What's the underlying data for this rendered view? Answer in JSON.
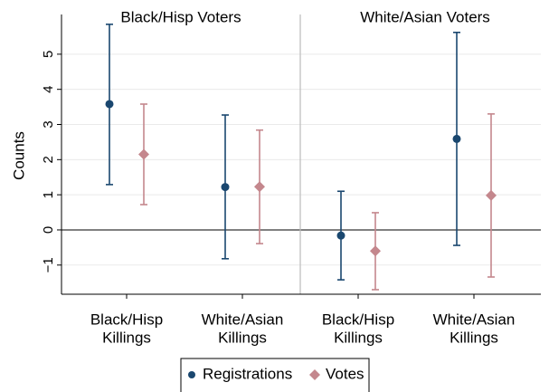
{
  "chart_data": {
    "type": "errorbar",
    "ylabel": "Counts",
    "groups": [
      "Black/Hisp Voters",
      "White/Asian Voters"
    ],
    "categories": [
      [
        "Black/Hisp",
        "Killings"
      ],
      [
        "White/Asian",
        "Killings"
      ],
      [
        "Black/Hisp",
        "Killings"
      ],
      [
        "White/Asian",
        "Killings"
      ]
    ],
    "series": [
      {
        "name": "Registrations",
        "color": "#1a476f",
        "marker": "circle",
        "values": [
          3.58,
          1.22,
          -0.16,
          2.59
        ],
        "lower": [
          1.29,
          -0.82,
          -1.42,
          -0.44
        ],
        "upper": [
          5.85,
          3.27,
          1.1,
          5.62
        ]
      },
      {
        "name": "Votes",
        "color": "#c4878d",
        "marker": "diamond",
        "values": [
          2.15,
          1.23,
          -0.6,
          0.98
        ],
        "lower": [
          0.72,
          -0.39,
          -1.7,
          -1.34
        ],
        "upper": [
          3.58,
          2.84,
          0.49,
          3.3
        ]
      }
    ],
    "ylim": [
      -1.83,
      6.13
    ],
    "yticks": [
      {
        "value": -1,
        "label": "−1"
      },
      0,
      1,
      2,
      3,
      4,
      5
    ],
    "grid": true
  }
}
